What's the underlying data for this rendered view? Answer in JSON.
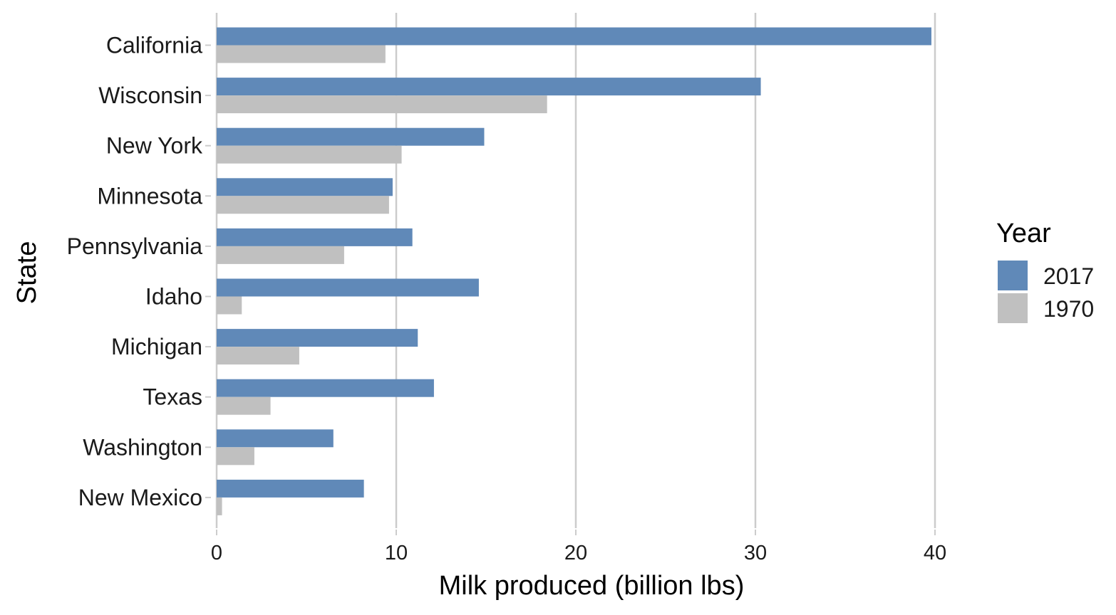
{
  "chart_data": {
    "type": "bar",
    "orientation": "horizontal",
    "categories": [
      "California",
      "Wisconsin",
      "New York",
      "Minnesota",
      "Pennsylvania",
      "Idaho",
      "Michigan",
      "Texas",
      "Washington",
      "New Mexico"
    ],
    "series": [
      {
        "name": "2017",
        "color": "#6089b8",
        "values": [
          39.8,
          30.3,
          14.9,
          9.8,
          10.9,
          14.6,
          11.2,
          12.1,
          6.5,
          8.2
        ]
      },
      {
        "name": "1970",
        "color": "#c0c0c0",
        "values": [
          9.4,
          18.4,
          10.3,
          9.6,
          7.1,
          1.4,
          4.6,
          3.0,
          2.1,
          0.3
        ]
      }
    ],
    "xlabel": "Milk produced (billion lbs)",
    "ylabel": "State",
    "xlim": [
      0,
      45
    ],
    "xticks": [
      0,
      10,
      20,
      30,
      40
    ],
    "grid": "vertical major",
    "legend": {
      "title": "Year",
      "position": "right"
    }
  }
}
